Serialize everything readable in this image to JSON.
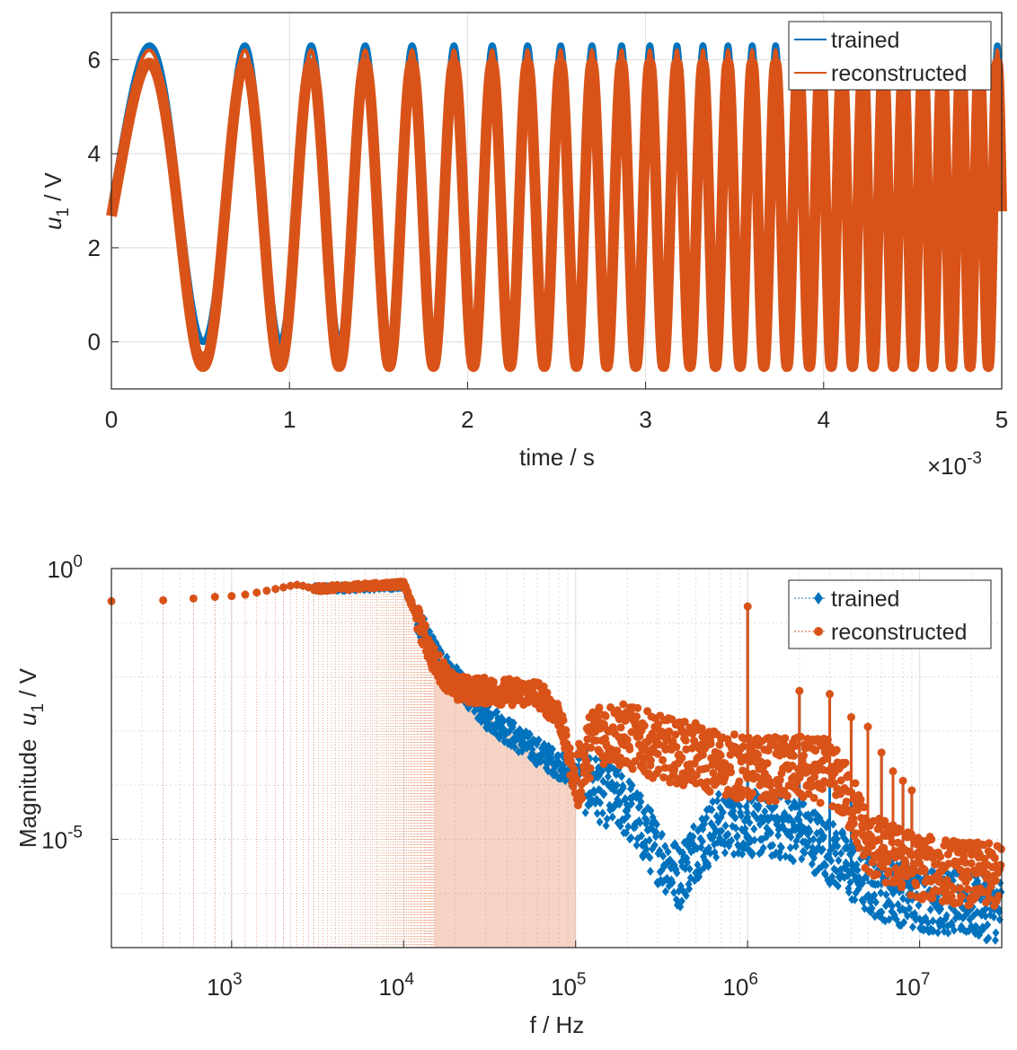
{
  "colors": {
    "trained": "#0072BD",
    "reconstructed": "#D95319",
    "axis": "#262626",
    "grid": "#dcdcdc"
  },
  "chart_data": [
    {
      "type": "line",
      "title": "",
      "xlabel": "time / s",
      "ylabel_main": "u",
      "ylabel_sub": "1",
      "ylabel_unit": " / V",
      "x_exponent_base": "×10",
      "x_exponent": "-3",
      "xlim": [
        0,
        5
      ],
      "ylim": [
        -1,
        7
      ],
      "xticks": [
        0,
        1,
        2,
        3,
        4,
        5
      ],
      "xtick_labels": [
        "0",
        "1",
        "2",
        "3",
        "4",
        "5"
      ],
      "yticks": [
        0,
        2,
        4,
        6
      ],
      "ytick_labels": [
        "0",
        "2",
        "4",
        "6"
      ],
      "grid": true,
      "legend_position": "top-right",
      "series": [
        {
          "name": "trained",
          "signal": "chirp",
          "offset": 3.05,
          "amplitude_upper": 3.25,
          "amplitude_lower": 3.05,
          "start_value": 2.95,
          "f_start_khz": 1.0,
          "f_end_khz": 10.0
        },
        {
          "name": "reconstructed",
          "signal": "chirp",
          "offset": 3.0,
          "amplitude_upper": 3.2,
          "amplitude_lower": 3.25,
          "band_width": 0.55,
          "start_value": 2.95,
          "f_start_khz": 1.0,
          "f_end_khz": 10.0
        }
      ]
    },
    {
      "type": "scatter",
      "title": "",
      "xlabel": "f / Hz",
      "ylabel_main": "Magnitude  ",
      "ylabel_var": "u",
      "ylabel_sub": "1",
      "ylabel_unit": " / V",
      "xscale": "log",
      "yscale": "log",
      "xlim": [
        200,
        30000000
      ],
      "ylim": [
        1e-07,
        1
      ],
      "xticks": [
        1000,
        10000,
        100000,
        1000000,
        10000000
      ],
      "xtick_base": "10",
      "xtick_exponents": [
        "3",
        "4",
        "5",
        "6",
        "7"
      ],
      "yticks": [
        1e-05,
        1
      ],
      "ytick_base": "10",
      "ytick_exponents": [
        "-5",
        "0"
      ],
      "grid": true,
      "legend_position": "top-right",
      "series": [
        {
          "name": "trained",
          "marker": "diamond",
          "stem_spacing_hz": 200,
          "lowfreq_points": [
            [
              200,
              0.25
            ],
            [
              400,
              0.26
            ],
            [
              600,
              0.28
            ],
            [
              800,
              0.3
            ],
            [
              1000,
              0.31
            ],
            [
              1200,
              0.33
            ],
            [
              1400,
              0.36
            ],
            [
              1600,
              0.39
            ],
            [
              1800,
              0.42
            ],
            [
              2000,
              0.45
            ],
            [
              2200,
              0.48
            ],
            [
              2400,
              0.5
            ],
            [
              2600,
              0.48
            ],
            [
              2800,
              0.45
            ],
            [
              3000,
              0.42
            ]
          ],
          "envelope": [
            [
              3000,
              0.42
            ],
            [
              10000,
              0.48
            ],
            [
              12000,
              0.12
            ],
            [
              15000,
              0.03
            ],
            [
              20000,
              0.009
            ],
            [
              30000,
              0.002
            ],
            [
              50000,
              0.0006
            ],
            [
              100000,
              0.00015
            ],
            [
              200000,
              4e-05
            ],
            [
              300000,
              6e-06
            ],
            [
              400000,
              2e-06
            ],
            [
              500000,
              7e-06
            ],
            [
              700000,
              2e-05
            ],
            [
              900000,
              2e-05
            ],
            [
              1000000,
              2e-05
            ],
            [
              2000000,
              1.5e-05
            ],
            [
              3000000,
              6e-06
            ],
            [
              5000000,
              1.5e-06
            ],
            [
              10000000,
              8e-07
            ],
            [
              30000000,
              5e-07
            ]
          ],
          "harmonics": [
            [
              1000000,
              0.2
            ],
            [
              2000000,
              0.0055
            ],
            [
              3000000,
              0.0048
            ],
            [
              4000000,
              0.0018
            ],
            [
              5000000,
              0.0012
            ],
            [
              6000000,
              0.0004
            ],
            [
              7000000,
              0.00018
            ],
            [
              8000000,
              0.00012
            ],
            [
              9000000,
              8e-05
            ]
          ]
        },
        {
          "name": "reconstructed",
          "marker": "circle",
          "stem_spacing_hz": 200,
          "lowfreq_points": [
            [
              200,
              0.25
            ],
            [
              400,
              0.26
            ],
            [
              600,
              0.28
            ],
            [
              800,
              0.3
            ],
            [
              1000,
              0.31
            ],
            [
              1200,
              0.33
            ],
            [
              1400,
              0.36
            ],
            [
              1600,
              0.39
            ],
            [
              1800,
              0.42
            ],
            [
              2000,
              0.45
            ],
            [
              2200,
              0.48
            ],
            [
              2400,
              0.5
            ],
            [
              2600,
              0.48
            ],
            [
              2800,
              0.45
            ],
            [
              3000,
              0.42
            ]
          ],
          "envelope": [
            [
              3000,
              0.42
            ],
            [
              10000,
              0.52
            ],
            [
              12000,
              0.12
            ],
            [
              15000,
              0.02
            ],
            [
              20000,
              0.006
            ],
            [
              30000,
              0.0055
            ],
            [
              60000,
              0.005
            ],
            [
              80000,
              0.002
            ],
            [
              100000,
              0.0001
            ],
            [
              130000,
              0.001
            ],
            [
              200000,
              0.0008
            ],
            [
              300000,
              0.0005
            ],
            [
              500000,
              0.00035
            ],
            [
              700000,
              0.00025
            ],
            [
              1000000,
              0.0002
            ],
            [
              2000000,
              0.0002
            ],
            [
              3000000,
              0.00018
            ],
            [
              4000000,
              5e-05
            ],
            [
              5000000,
              8e-06
            ],
            [
              10000000,
              3e-06
            ],
            [
              30000000,
              2e-06
            ]
          ],
          "harmonics": [
            [
              1000000,
              0.2
            ],
            [
              2000000,
              0.0055
            ],
            [
              3000000,
              0.0048
            ],
            [
              4000000,
              0.0018
            ],
            [
              5000000,
              0.0012
            ],
            [
              6000000,
              0.0004
            ],
            [
              7000000,
              0.00018
            ],
            [
              8000000,
              0.00012
            ],
            [
              9000000,
              8e-05
            ]
          ]
        }
      ]
    }
  ]
}
